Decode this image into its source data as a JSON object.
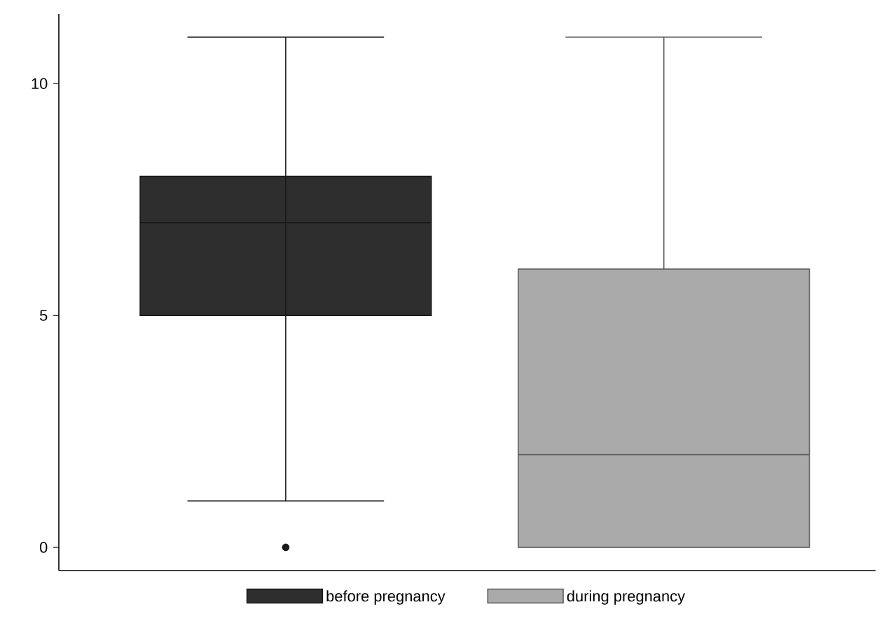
{
  "chart_data": {
    "type": "box",
    "categories": [
      null,
      null
    ],
    "ylim": [
      -0.5,
      11.5
    ],
    "yticks": [
      0,
      5,
      10
    ],
    "grid": false,
    "legend": "bottom",
    "series": [
      {
        "name": "before pregnancy",
        "color": "#2e2e2e",
        "boxes": [
          {
            "low": 1,
            "q1": 5,
            "median": 7,
            "q3": 8,
            "high": 11,
            "outliers": [
              0
            ]
          },
          null
        ]
      },
      {
        "name": "during pregnancy",
        "color": "#aaaaaa",
        "boxes": [
          null,
          {
            "low": 0,
            "q1": 0,
            "median": 2,
            "q3": 6,
            "high": 11
          }
        ]
      }
    ]
  }
}
